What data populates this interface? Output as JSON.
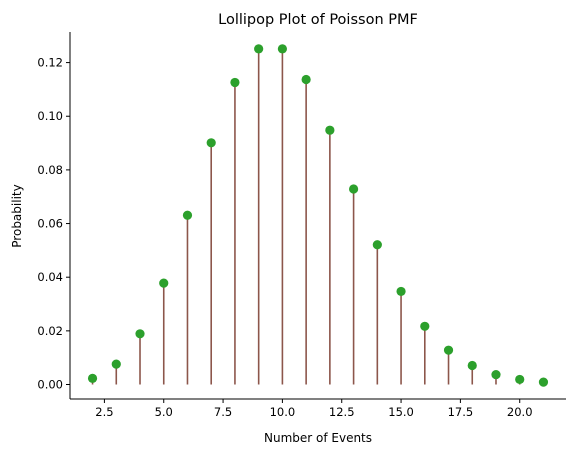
{
  "chart_data": {
    "type": "lollipop",
    "title": "Lollipop Plot of Poisson PMF",
    "xlabel": "Number of Events",
    "ylabel": "Probability",
    "x": [
      2,
      3,
      4,
      5,
      6,
      7,
      8,
      9,
      10,
      11,
      12,
      13,
      14,
      15,
      16,
      17,
      18,
      19,
      20,
      21
    ],
    "y": [
      0.0023,
      0.0076,
      0.0189,
      0.0378,
      0.0631,
      0.0901,
      0.1126,
      0.1251,
      0.1251,
      0.1137,
      0.0948,
      0.0729,
      0.0521,
      0.0347,
      0.0217,
      0.0128,
      0.0071,
      0.0037,
      0.0019,
      0.0009
    ],
    "xlim": [
      1.05,
      21.95
    ],
    "ylim": [
      -0.0054,
      0.1314
    ],
    "xticks": [
      2.5,
      5.0,
      7.5,
      10.0,
      12.5,
      15.0,
      17.5,
      20.0
    ],
    "xtick_labels": [
      "2.5",
      "5.0",
      "7.5",
      "10.0",
      "12.5",
      "15.0",
      "17.5",
      "20.0"
    ],
    "yticks": [
      0.0,
      0.02,
      0.04,
      0.06,
      0.08,
      0.1,
      0.12
    ],
    "ytick_labels": [
      "0.00",
      "0.02",
      "0.04",
      "0.06",
      "0.08",
      "0.10",
      "0.12"
    ],
    "stem_color": "#8c564b",
    "marker_color": "#2ca02c",
    "grid": false,
    "spines": [
      "left",
      "bottom"
    ]
  }
}
